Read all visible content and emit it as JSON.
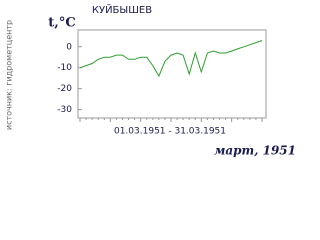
{
  "chart_data": {
    "type": "line",
    "title": "КУЙБЫШЕВ",
    "ylabel": "t,°C",
    "source": "источник: гидрометцентр",
    "xlabel": "01.03.1951 - 31.03.1951",
    "footer": "март, 1951",
    "values": [
      -10,
      -9,
      -8,
      -6,
      -5,
      -5,
      -4,
      -4,
      -6,
      -6,
      -5,
      -5,
      -9,
      -14,
      -7,
      -4,
      -3,
      -4,
      -13,
      -3,
      -12,
      -3,
      -2,
      -3,
      -3,
      -2,
      -1,
      0,
      1,
      2,
      3
    ],
    "color": "#2ca02c",
    "ylim": [
      -34,
      8
    ],
    "yticks": [
      -30,
      -20,
      -10,
      0
    ]
  }
}
